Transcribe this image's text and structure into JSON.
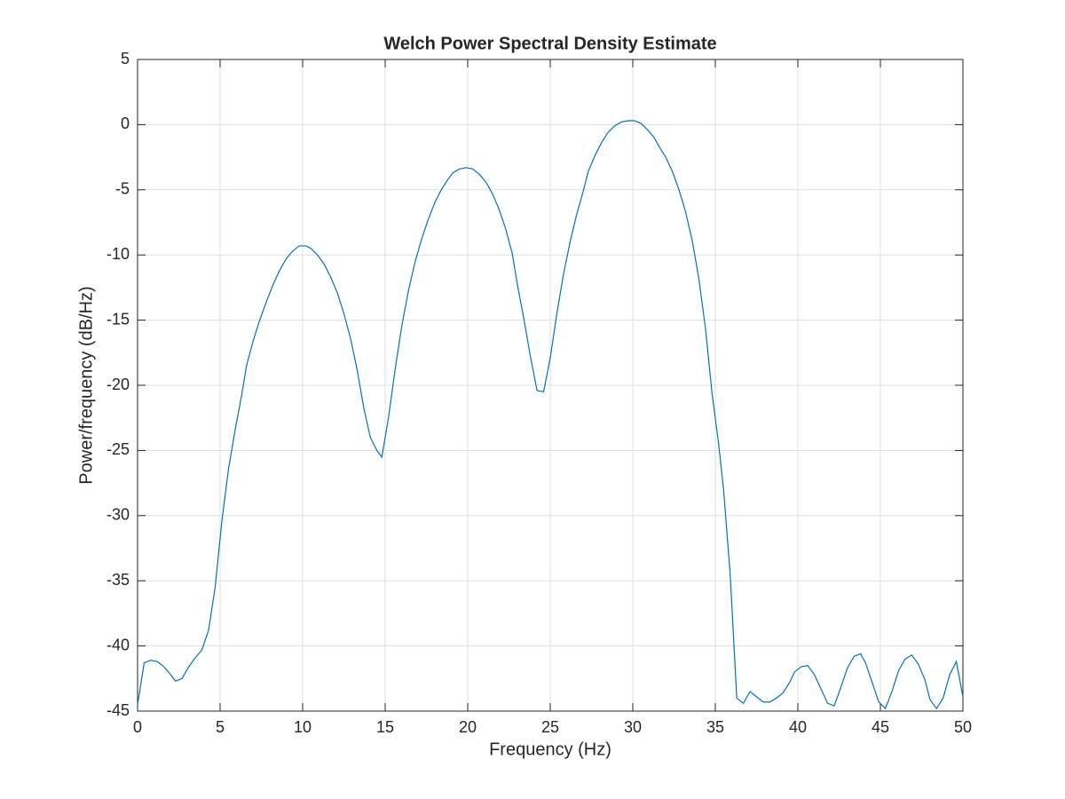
{
  "chart_data": {
    "type": "line",
    "title": "Welch Power Spectral Density Estimate",
    "xlabel": "Frequency (Hz)",
    "ylabel": "Power/frequency (dB/Hz)",
    "x": [
      0,
      0.4,
      0.8,
      1.2,
      1.6,
      2.0,
      2.3,
      2.7,
      3.1,
      3.5,
      3.9,
      4.3,
      4.7,
      5.1,
      5.5,
      5.9,
      6.3,
      6.6,
      7.0,
      7.4,
      7.8,
      8.2,
      8.6,
      9.0,
      9.4,
      9.8,
      10.2,
      10.5,
      10.9,
      11.3,
      11.7,
      12.1,
      12.5,
      12.9,
      13.3,
      13.7,
      14.1,
      14.5,
      14.8,
      15.2,
      15.6,
      16.0,
      16.4,
      16.8,
      17.2,
      17.6,
      18.0,
      18.4,
      18.8,
      19.1,
      19.5,
      19.9,
      20.3,
      20.7,
      21.1,
      21.5,
      21.9,
      22.3,
      22.7,
      23.0,
      23.4,
      23.8,
      24.2,
      24.6,
      25.0,
      25.4,
      25.8,
      26.2,
      26.6,
      27.0,
      27.3,
      27.7,
      28.1,
      28.5,
      28.9,
      29.3,
      29.7,
      30.1,
      30.5,
      30.9,
      31.3,
      31.6,
      32.0,
      32.4,
      32.8,
      33.2,
      33.6,
      34.0,
      34.4,
      34.8,
      35.2,
      35.5,
      35.9,
      36.3,
      36.7,
      37.1,
      37.5,
      37.9,
      38.3,
      38.7,
      39.1,
      39.5,
      39.8,
      40.2,
      40.6,
      41.0,
      41.4,
      41.8,
      42.2,
      42.6,
      43.0,
      43.4,
      43.8,
      44.1,
      44.5,
      44.9,
      45.3,
      45.7,
      46.1,
      46.5,
      46.9,
      47.3,
      47.7,
      48.0,
      48.4,
      48.8,
      49.2,
      49.6,
      50.0
    ],
    "series": [
      {
        "color": "#0072bd",
        "values": [
          -44.5,
          -41.3,
          -41.1,
          -41.2,
          -41.6,
          -42.2,
          -42.7,
          -42.5,
          -41.6,
          -40.9,
          -40.3,
          -38.8,
          -35.5,
          -30.5,
          -26.5,
          -23.5,
          -20.8,
          -18.5,
          -16.6,
          -15.0,
          -13.6,
          -12.3,
          -11.2,
          -10.3,
          -9.7,
          -9.3,
          -9.3,
          -9.5,
          -10.0,
          -10.7,
          -11.7,
          -12.9,
          -14.5,
          -16.4,
          -18.8,
          -21.7,
          -24.0,
          -25.0,
          -25.5,
          -22.5,
          -18.8,
          -15.5,
          -12.8,
          -10.6,
          -8.8,
          -7.3,
          -6.0,
          -5.0,
          -4.2,
          -3.7,
          -3.4,
          -3.3,
          -3.4,
          -3.8,
          -4.4,
          -5.3,
          -6.5,
          -8.0,
          -9.9,
          -12.2,
          -14.9,
          -17.8,
          -20.4,
          -20.5,
          -17.9,
          -14.5,
          -11.5,
          -9.0,
          -6.9,
          -5.1,
          -3.6,
          -2.4,
          -1.4,
          -0.6,
          -0.1,
          0.2,
          0.3,
          0.3,
          0.1,
          -0.4,
          -1.0,
          -1.7,
          -2.5,
          -3.6,
          -5.0,
          -6.7,
          -8.9,
          -11.8,
          -15.6,
          -20.6,
          -24.5,
          -28.0,
          -34.5,
          -44.0,
          -44.4,
          -43.5,
          -43.9,
          -44.3,
          -44.3,
          -44.0,
          -43.6,
          -42.8,
          -42.0,
          -41.6,
          -41.5,
          -42.2,
          -43.3,
          -44.4,
          -44.6,
          -43.2,
          -41.7,
          -40.8,
          -40.6,
          -41.3,
          -42.8,
          -44.3,
          -44.8,
          -43.5,
          -41.9,
          -41.0,
          -40.7,
          -41.4,
          -42.6,
          -44.1,
          -44.8,
          -44.0,
          -42.2,
          -41.2,
          -43.9
        ]
      }
    ],
    "xlim": [
      0,
      50
    ],
    "xticks": [
      0,
      5,
      10,
      15,
      20,
      25,
      30,
      35,
      40,
      45,
      50
    ],
    "ylim": [
      -45,
      5
    ],
    "yticks": [
      -45,
      -40,
      -35,
      -30,
      -25,
      -20,
      -15,
      -10,
      -5,
      0,
      5
    ],
    "grid": true
  }
}
